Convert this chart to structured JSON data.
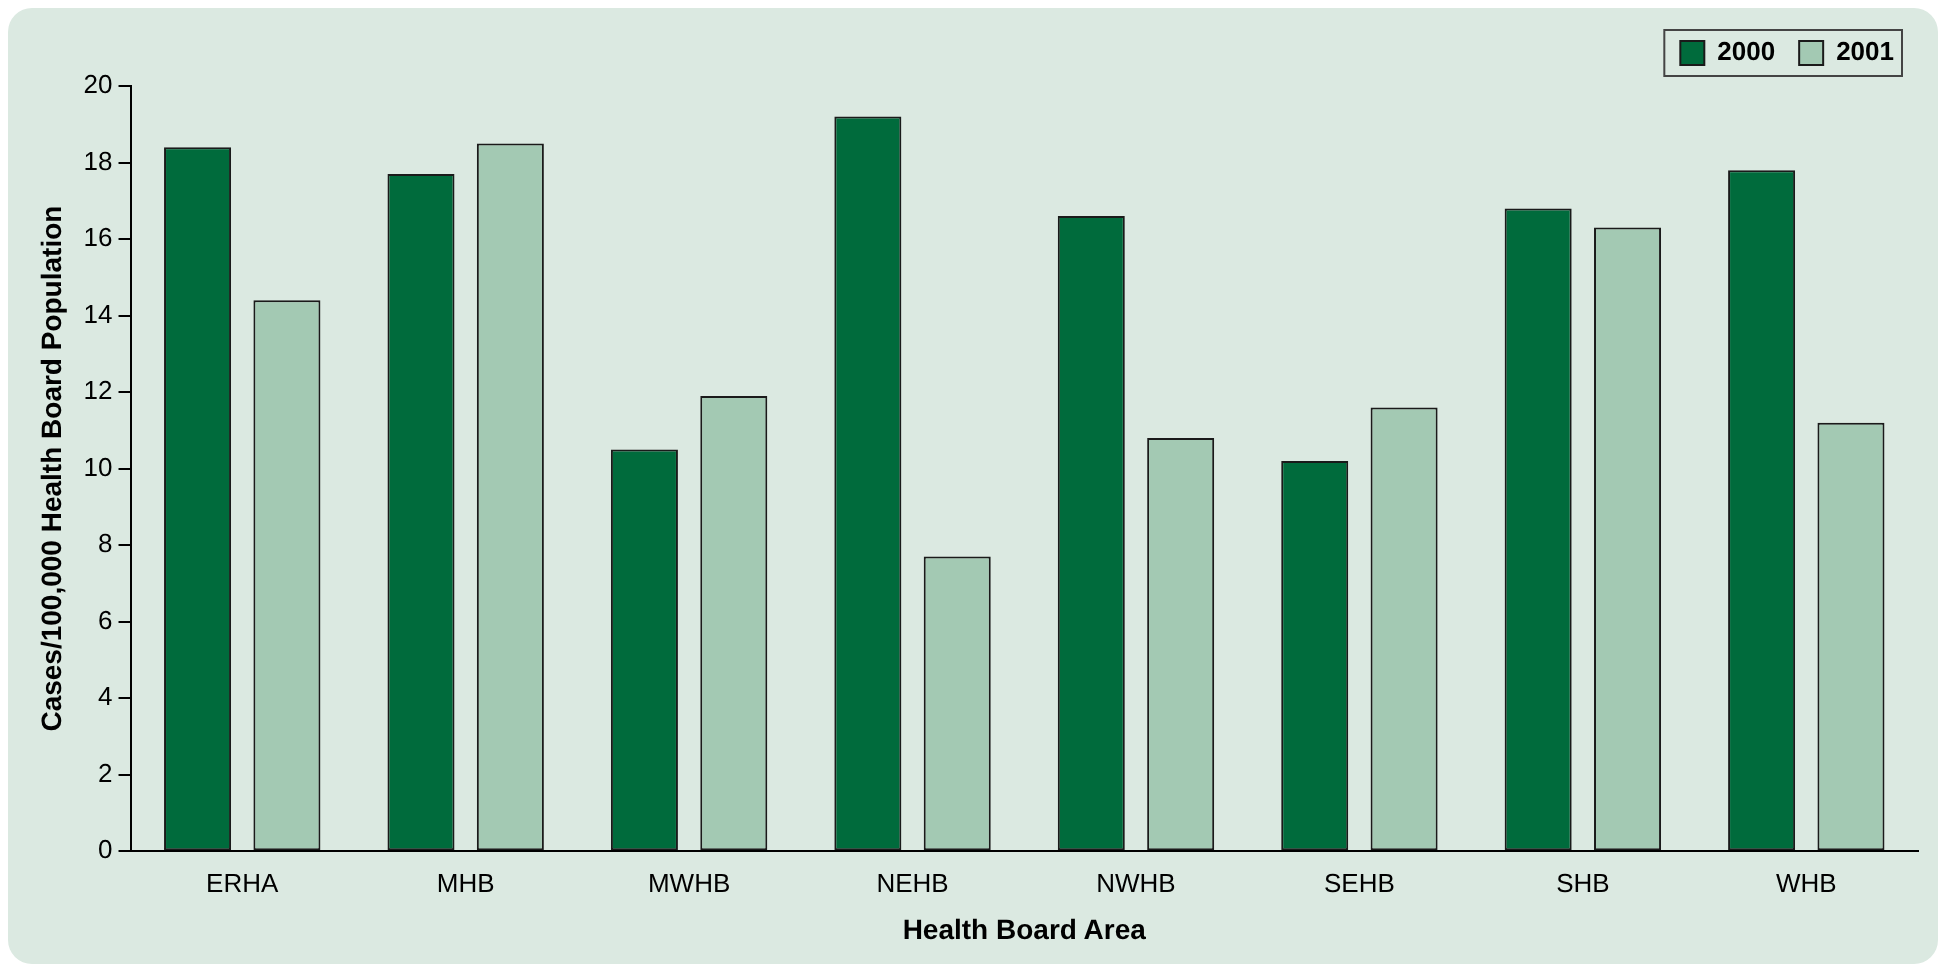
{
  "chart_data": {
    "type": "bar",
    "xlabel": "Health Board Area",
    "ylabel": "Cases/100,000 Health Board Population",
    "categories": [
      "ERHA",
      "MHB",
      "MWHB",
      "NEHB",
      "NWHB",
      "SEHB",
      "SHB",
      "WHB"
    ],
    "series": [
      {
        "name": "2000",
        "color": "#006b3c",
        "values": [
          18.4,
          17.7,
          10.5,
          19.2,
          16.6,
          10.2,
          16.8,
          17.8
        ]
      },
      {
        "name": "2001",
        "color": "#a3c9b3",
        "values": [
          14.4,
          18.5,
          11.9,
          7.7,
          10.8,
          11.6,
          16.3,
          11.2
        ]
      }
    ],
    "ylim": [
      0,
      20
    ],
    "yticks": [
      0,
      2,
      4,
      6,
      8,
      10,
      12,
      14,
      16,
      18,
      20
    ],
    "grid": false,
    "legend": "top right"
  }
}
